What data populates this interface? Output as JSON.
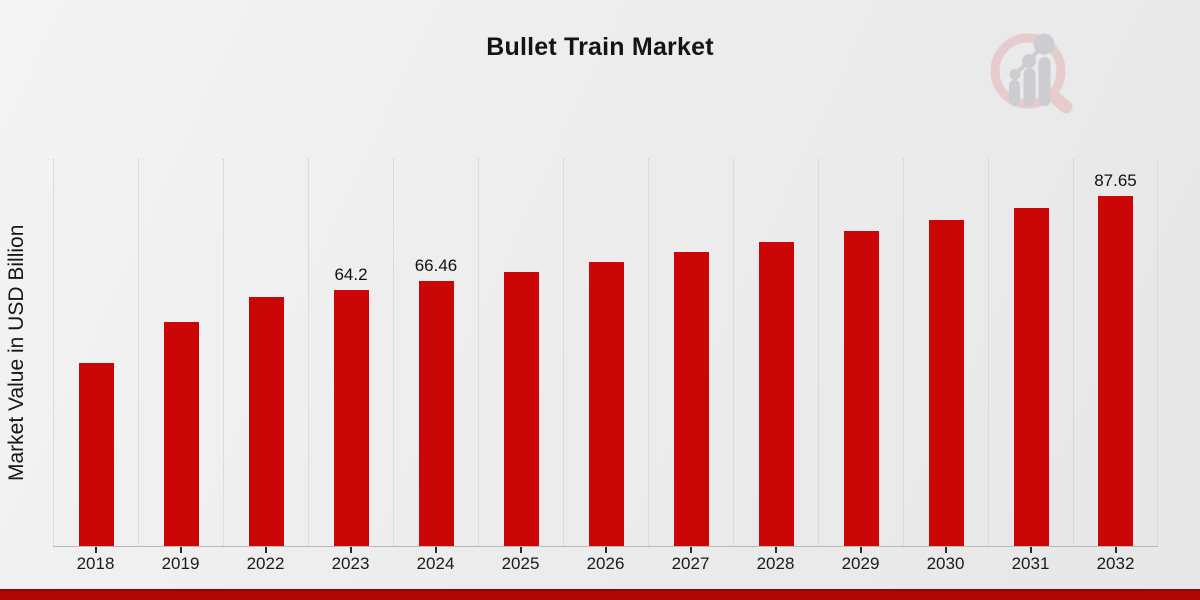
{
  "title": "Bullet Train Market",
  "y_axis_label": "Market Value in USD Billion",
  "colors": {
    "bar": "#cb0606",
    "footer_band": "#b10505",
    "grid": "#c9c9c9",
    "axis": "#b9b9b9",
    "text": "#1a1a1a",
    "background_light": "#f4f4f4",
    "background_dark": "#e7e7e7",
    "logo_red": "#e6c9c9",
    "logo_gray": "#c9c9cf"
  },
  "chart_data": {
    "type": "bar",
    "title": "Bullet Train Market",
    "xlabel": "",
    "ylabel": "Market Value in USD Billion",
    "unit": "USD Billion",
    "categories": [
      "2018",
      "2019",
      "2022",
      "2023",
      "2024",
      "2025",
      "2026",
      "2027",
      "2028",
      "2029",
      "2030",
      "2031",
      "2032"
    ],
    "values": [
      45.9,
      56.2,
      62.5,
      64.2,
      66.46,
      68.79,
      71.21,
      73.71,
      76.3,
      78.97,
      81.75,
      84.62,
      87.65
    ],
    "bar_labels": [
      "",
      "",
      "",
      "64.2",
      "66.46",
      "",
      "",
      "",
      "",
      "",
      "",
      "",
      "87.65"
    ],
    "ylim": [
      0,
      97
    ],
    "grid": "vertical-dotted",
    "legend": "none",
    "bar_color": "#cb0606"
  }
}
